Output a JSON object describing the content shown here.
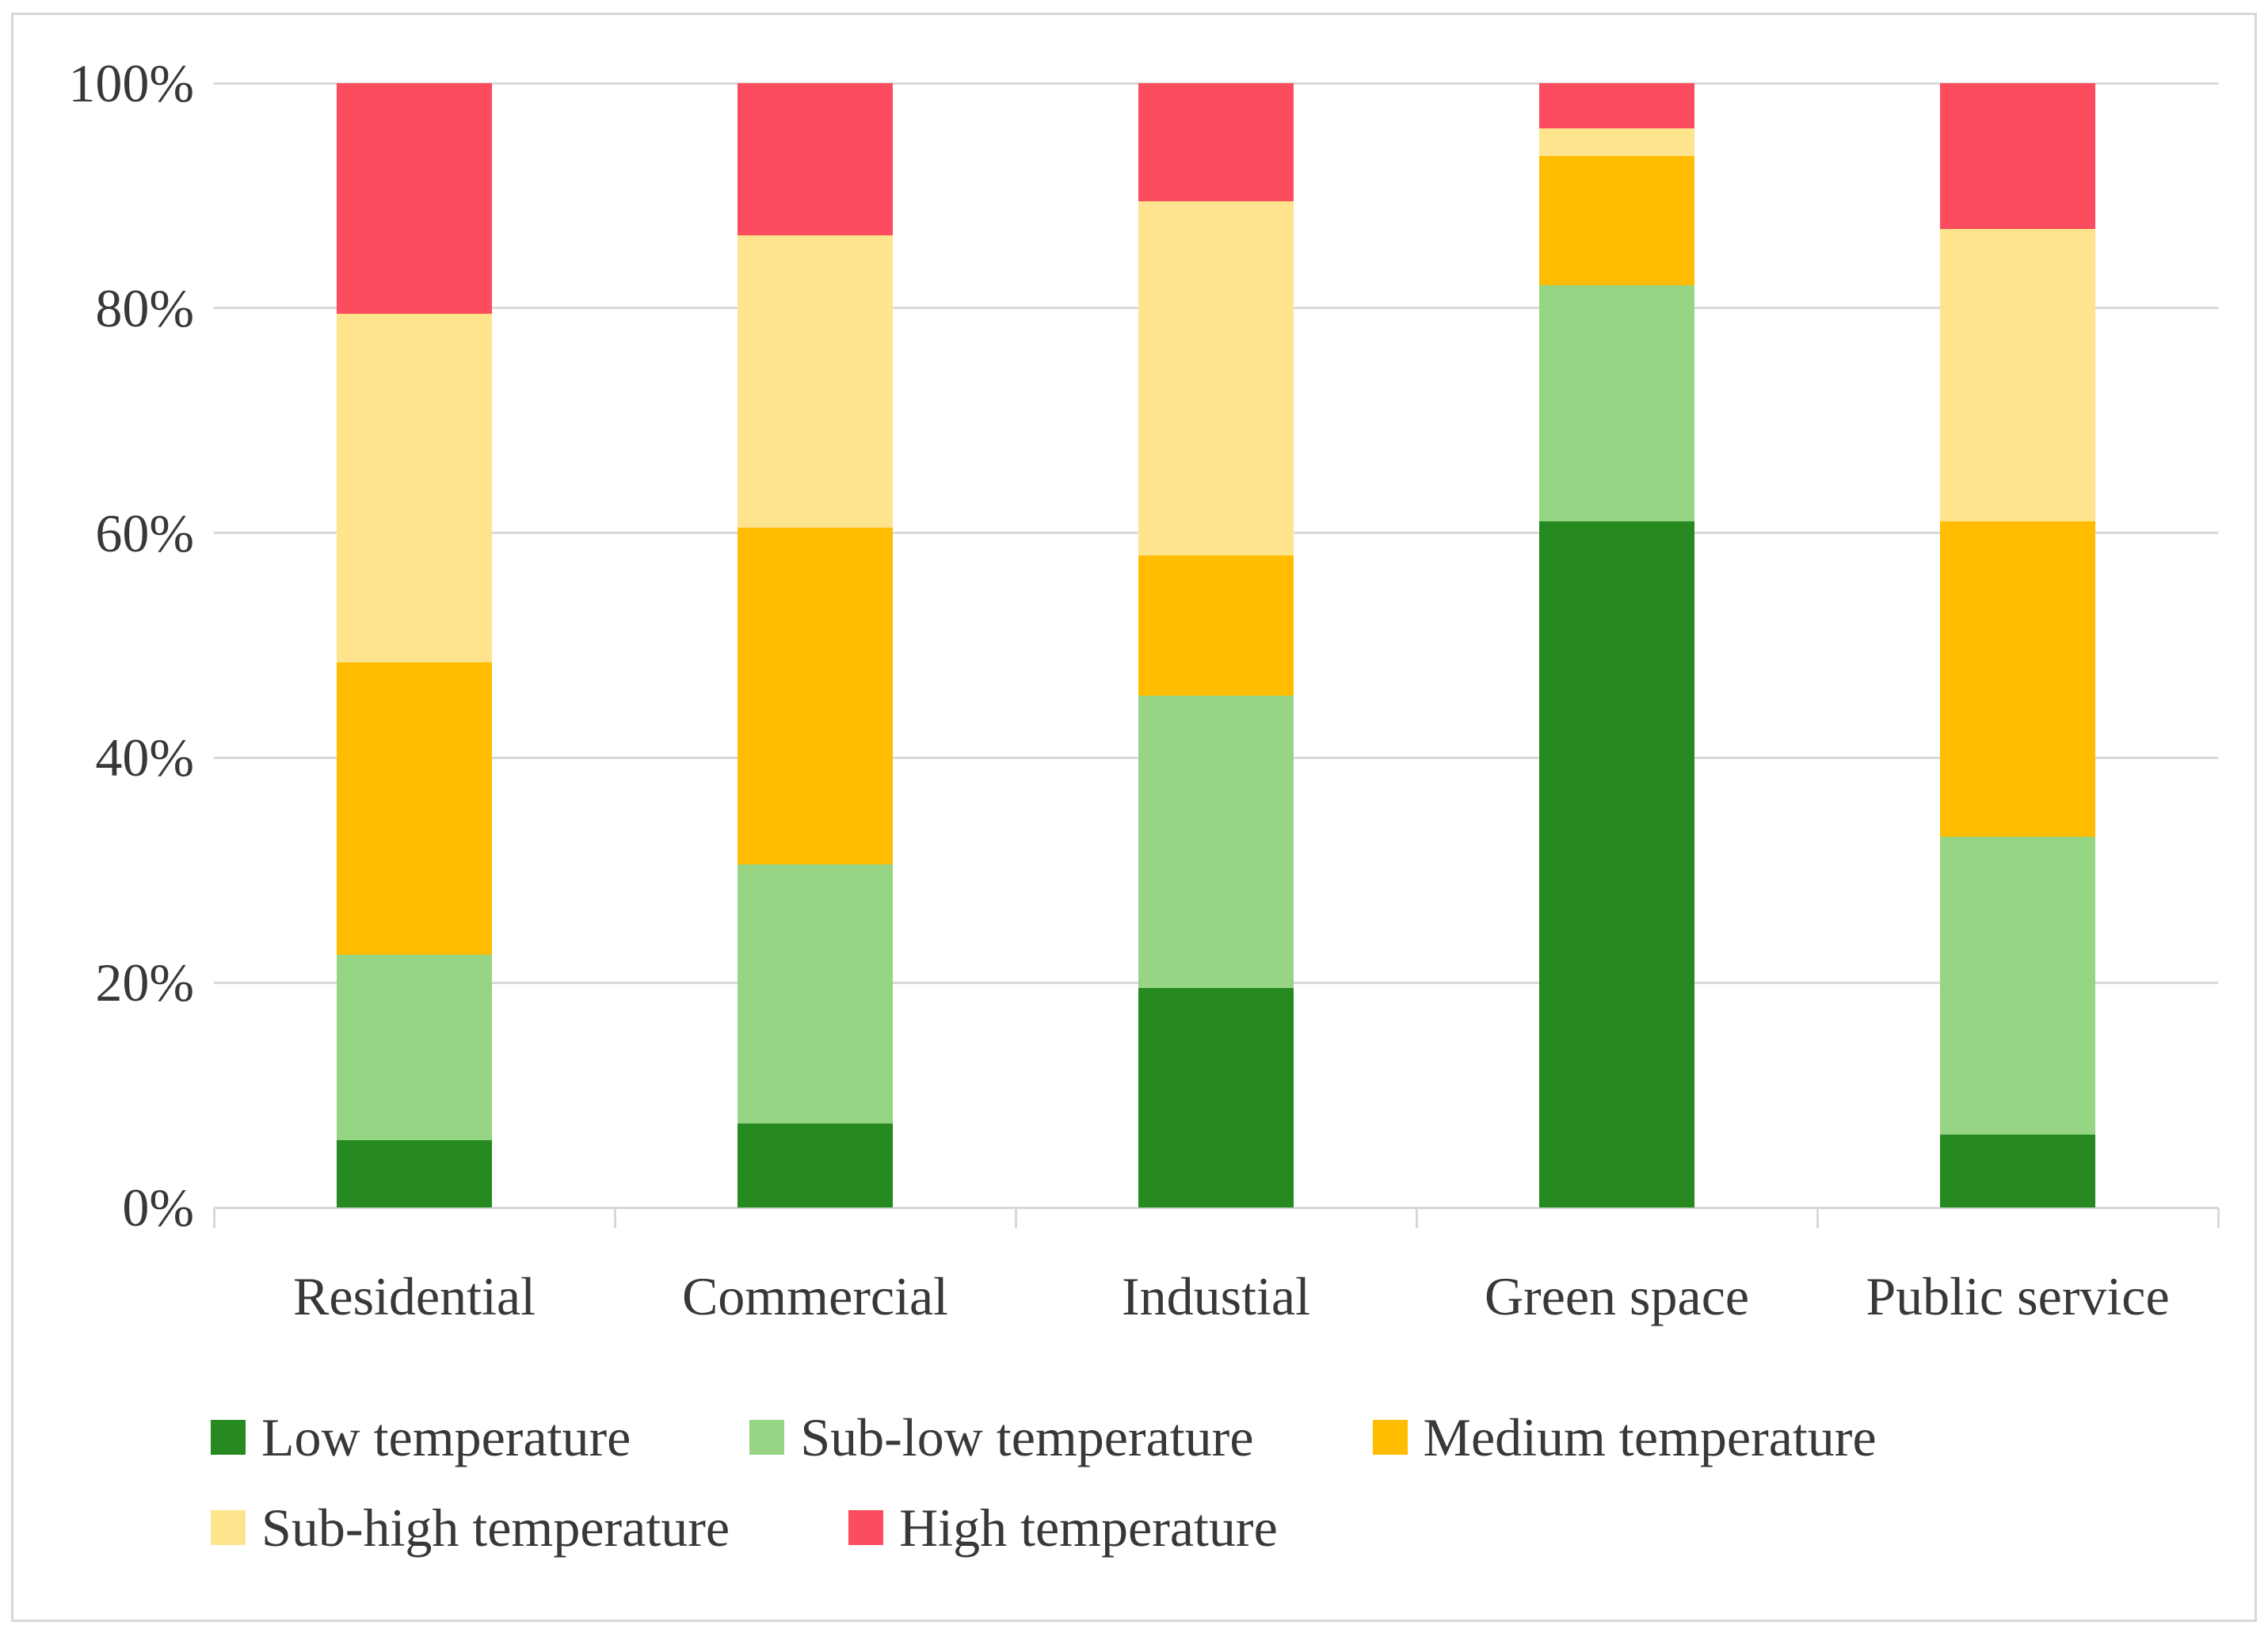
{
  "figure": {
    "kind": "stacked-percentage-bar-chart",
    "frame_border_color": "#d8d6d6",
    "background": "#ffffff",
    "text_color": "#383838",
    "gridline_color": "#d9d9d9"
  },
  "chart_data": {
    "type": "bar",
    "variant": "100%-stacked-vertical",
    "title": "",
    "xlabel": "",
    "ylabel": "",
    "categories": [
      "Residential",
      "Commercial",
      "Industial",
      "Green space",
      "Public service"
    ],
    "series": [
      {
        "name": "Low temperature",
        "color": "#268a20",
        "values": [
          6,
          7.5,
          19.5,
          61,
          6.5
        ]
      },
      {
        "name": "Sub-low temperature",
        "color": "#96d584",
        "values": [
          16.5,
          23,
          26,
          21,
          26.5
        ]
      },
      {
        "name": "Medium temperature",
        "color": "#ffbc00",
        "values": [
          26,
          30,
          12.5,
          11.5,
          28
        ]
      },
      {
        "name": "Sub-high temperature",
        "color": "#ffe48e",
        "values": [
          31,
          26,
          31.5,
          2.5,
          26
        ]
      },
      {
        "name": "High temperature",
        "color": "#fc4d5e",
        "values": [
          20.5,
          13.5,
          10.5,
          4,
          13
        ]
      }
    ],
    "y_axis": {
      "min": 0,
      "max": 100,
      "tick_labels": [
        "0%",
        "20%",
        "40%",
        "60%",
        "80%",
        "100%"
      ],
      "grid": true
    },
    "legend": {
      "position": "bottom-left",
      "rows": [
        [
          "Low temperature",
          "Sub-low temperature",
          "Medium temperature"
        ],
        [
          "Sub-high temperature",
          "High temperature"
        ]
      ]
    }
  }
}
